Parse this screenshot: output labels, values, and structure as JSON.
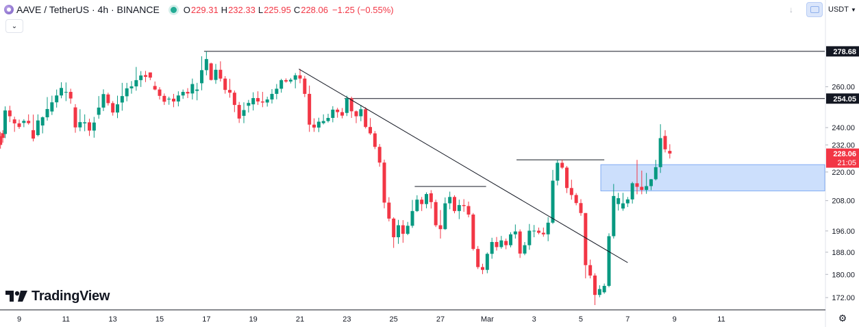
{
  "header": {
    "symbol": "AAVE / TetherUS · 4h · BINANCE",
    "ohlc": [
      {
        "key": "O",
        "value": "229.31"
      },
      {
        "key": "H",
        "value": "232.33"
      },
      {
        "key": "L",
        "value": "225.95"
      },
      {
        "key": "C",
        "value": "228.06"
      }
    ],
    "change": "−1.25 (−0.55%)"
  },
  "toolbar": {
    "currency": "USDT",
    "collapse_icon": "chevron-down-icon",
    "download_icon": "download-arrow-icon",
    "snapshot_icon": "screenshot-icon"
  },
  "branding": {
    "logo_text": "TradingView"
  },
  "colors": {
    "up": "#089981",
    "down": "#f23645",
    "zone": "#bbd4fb",
    "label_dark": "#131722",
    "label_red": "#f23645"
  },
  "chart_data": {
    "type": "candlestick",
    "title": "AAVE / TetherUS · 4h · BINANCE",
    "y_scale": "log",
    "ylim": [
      169.5,
      290.5
    ],
    "y_ticks": [
      "172.00",
      "180.00",
      "188.00",
      "196.00",
      "208.00",
      "220.00",
      "232.00",
      "240.00",
      "260.00"
    ],
    "x_ticks": [
      {
        "label": "9",
        "day": 9
      },
      {
        "label": "11",
        "day": 11
      },
      {
        "label": "13",
        "day": 13
      },
      {
        "label": "15",
        "day": 15
      },
      {
        "label": "17",
        "day": 17
      },
      {
        "label": "19",
        "day": 19
      },
      {
        "label": "21",
        "day": 21
      },
      {
        "label": "23",
        "day": 23
      },
      {
        "label": "25",
        "day": 25
      },
      {
        "label": "27",
        "day": 27
      },
      {
        "label": "Mar",
        "day": 29
      },
      {
        "label": "3",
        "day": 31
      },
      {
        "label": "5",
        "day": 33
      },
      {
        "label": "7",
        "day": 35
      },
      {
        "label": "9",
        "day": 37
      },
      {
        "label": "11",
        "day": 39
      }
    ],
    "x_domain": [
      8.18,
      43.42
    ],
    "price_labels": [
      {
        "text": "278.68",
        "value": 278.68,
        "style": "dark"
      },
      {
        "text": "254.05",
        "value": 254.05,
        "style": "dark"
      },
      {
        "text": "228.06",
        "sub": "21:05",
        "value": 228.06,
        "style": "red"
      }
    ],
    "horizontal_levels": [
      {
        "value": 278.68,
        "from_day": 16.9
      },
      {
        "value": 254.05,
        "from_day": 22.9
      },
      {
        "value": 213.85,
        "from_day": 25.9,
        "to_day": 28.95
      },
      {
        "value": 225.3,
        "from_day": 30.25,
        "to_day": 34.0
      }
    ],
    "trendline": {
      "from": [
        20.95,
        269.2
      ],
      "to": [
        35.0,
        184.2
      ]
    },
    "zone": {
      "from_day": 33.85,
      "top": 223.2,
      "bottom": 212.0
    },
    "candles": [
      [
        8.2,
        236.0,
        238.0,
        230.3,
        232.0
      ],
      [
        8.3,
        237.4,
        238.8,
        233.0,
        235.2
      ],
      [
        8.4,
        237.0,
        250.2,
        235.1,
        248.2
      ],
      [
        8.6,
        248.2,
        250.5,
        242.6,
        245.4
      ],
      [
        8.8,
        243.9,
        245.2,
        238.0,
        242.0
      ],
      [
        9.0,
        242.0,
        243.8,
        239.4,
        240.3
      ],
      [
        9.2,
        242.2,
        244.0,
        240.2,
        243.2
      ],
      [
        9.4,
        243.2,
        246.3,
        241.4,
        242.1
      ],
      [
        9.6,
        238.8,
        246.2,
        233.6,
        234.9
      ],
      [
        9.8,
        236.5,
        246.3,
        235.9,
        243.4
      ],
      [
        10.0,
        241.0,
        245.3,
        237.3,
        244.9
      ],
      [
        10.2,
        244.9,
        254.8,
        243.3,
        248.9
      ],
      [
        10.4,
        247.7,
        255.5,
        246.0,
        252.2
      ],
      [
        10.6,
        252.2,
        258.6,
        249.6,
        255.6
      ],
      [
        10.8,
        255.6,
        262.3,
        254.2,
        259.4
      ],
      [
        11.0,
        257.4,
        262.2,
        252.8,
        257.4
      ],
      [
        11.2,
        257.4,
        259.0,
        251.5,
        254.1
      ],
      [
        11.4,
        249.7,
        251.3,
        237.6,
        240.1
      ],
      [
        11.6,
        240.1,
        248.8,
        238.3,
        242.6
      ],
      [
        11.8,
        242.0,
        246.3,
        238.3,
        242.5
      ],
      [
        12.0,
        242.5,
        244.2,
        236.1,
        238.6
      ],
      [
        12.2,
        238.6,
        245.1,
        235.3,
        242.4
      ],
      [
        12.4,
        246.1,
        255.3,
        244.2,
        249.6
      ],
      [
        12.6,
        249.6,
        258.7,
        247.9,
        256.3
      ],
      [
        12.8,
        256.1,
        257.0,
        250.6,
        251.8
      ],
      [
        13.0,
        251.8,
        252.8,
        245.7,
        247.2
      ],
      [
        13.2,
        247.2,
        255.5,
        244.5,
        251.2
      ],
      [
        13.4,
        252.1,
        262.0,
        248.1,
        255.3
      ],
      [
        13.6,
        255.2,
        262.0,
        252.7,
        259.2
      ],
      [
        13.8,
        259.2,
        262.9,
        256.5,
        260.2
      ],
      [
        14.0,
        260.2,
        270.3,
        258.0,
        263.4
      ],
      [
        14.2,
        263.4,
        268.1,
        259.9,
        265.8
      ],
      [
        14.4,
        266.0,
        268.2,
        262.4,
        265.1
      ],
      [
        14.6,
        267.4,
        267.4,
        263.4,
        264.7
      ],
      [
        14.8,
        260.4,
        262.7,
        258.2,
        258.6
      ],
      [
        15.0,
        258.6,
        259.8,
        253.6,
        255.4
      ],
      [
        15.2,
        255.4,
        256.6,
        250.9,
        252.5
      ],
      [
        15.4,
        253.6,
        255.0,
        251.0,
        254.0
      ],
      [
        15.6,
        254.0,
        256.4,
        249.8,
        252.6
      ],
      [
        15.8,
        252.6,
        257.7,
        250.2,
        255.6
      ],
      [
        16.0,
        255.6,
        258.6,
        253.9,
        257.4
      ],
      [
        16.2,
        257.4,
        259.3,
        254.3,
        256.6
      ],
      [
        16.4,
        256.6,
        264.2,
        253.6,
        261.4
      ],
      [
        16.6,
        257.9,
        262.0,
        253.2,
        258.6
      ],
      [
        16.8,
        261.8,
        276.0,
        258.2,
        268.6
      ],
      [
        17.0,
        268.6,
        278.7,
        265.9,
        274.5
      ],
      [
        17.2,
        272.2,
        272.6,
        263.2,
        263.5
      ],
      [
        17.4,
        263.5,
        271.9,
        261.5,
        268.8
      ],
      [
        17.6,
        268.8,
        273.3,
        262.7,
        264.2
      ],
      [
        17.8,
        264.2,
        265.5,
        256.5,
        258.4
      ],
      [
        18.0,
        258.4,
        264.1,
        254.5,
        257.0
      ],
      [
        18.2,
        257.0,
        258.1,
        247.4,
        250.9
      ],
      [
        18.4,
        250.9,
        252.4,
        242.2,
        244.3
      ],
      [
        18.6,
        245.6,
        252.2,
        242.1,
        248.4
      ],
      [
        18.8,
        250.5,
        253.4,
        247.2,
        251.9
      ],
      [
        19.0,
        251.2,
        257.2,
        248.2,
        254.3
      ],
      [
        19.2,
        254.3,
        257.7,
        250.9,
        252.6
      ],
      [
        19.4,
        252.6,
        257.4,
        249.8,
        252.1
      ],
      [
        19.6,
        252.1,
        255.0,
        250.1,
        253.6
      ],
      [
        19.8,
        253.6,
        258.8,
        251.6,
        256.4
      ],
      [
        20.0,
        256.4,
        261.4,
        253.7,
        259.0
      ],
      [
        20.2,
        259.0,
        264.1,
        257.0,
        263.4
      ],
      [
        20.4,
        263.4,
        264.3,
        262.1,
        262.7
      ],
      [
        20.6,
        262.7,
        264.5,
        261.7,
        263.6
      ],
      [
        20.8,
        263.6,
        267.1,
        259.2,
        265.9
      ],
      [
        21.0,
        265.9,
        269.2,
        261.8,
        264.2
      ],
      [
        21.2,
        264.2,
        265.6,
        254.8,
        256.4
      ],
      [
        21.4,
        256.4,
        260.6,
        238.0,
        241.4
      ],
      [
        21.6,
        241.4,
        244.4,
        238.0,
        240.0
      ],
      [
        21.8,
        240.0,
        244.7,
        237.9,
        242.8
      ],
      [
        22.0,
        242.1,
        246.3,
        241.5,
        243.1
      ],
      [
        22.2,
        243.1,
        246.6,
        242.4,
        244.6
      ],
      [
        22.4,
        244.6,
        250.3,
        242.5,
        248.6
      ],
      [
        22.6,
        248.6,
        249.5,
        244.7,
        247.4
      ],
      [
        22.8,
        247.4,
        249.4,
        244.4,
        245.7
      ],
      [
        23.0,
        247.0,
        255.5,
        245.5,
        254.2
      ],
      [
        23.2,
        254.2,
        255.0,
        244.6,
        247.8
      ],
      [
        23.4,
        247.8,
        248.2,
        242.1,
        245.4
      ],
      [
        23.6,
        245.4,
        250.9,
        243.0,
        248.8
      ],
      [
        23.8,
        248.8,
        249.8,
        239.6,
        240.3
      ],
      [
        24.0,
        240.3,
        244.5,
        236.6,
        237.3
      ],
      [
        24.2,
        237.3,
        238.4,
        230.1,
        231.1
      ],
      [
        24.4,
        231.1,
        232.4,
        222.3,
        224.1
      ],
      [
        24.6,
        224.1,
        225.4,
        204.9,
        207.2
      ],
      [
        24.8,
        207.2,
        209.4,
        199.7,
        200.8
      ],
      [
        25.0,
        200.8,
        201.3,
        189.6,
        193.6
      ],
      [
        25.2,
        193.6,
        200.3,
        191.1,
        198.2
      ],
      [
        25.4,
        198.2,
        200.2,
        191.5,
        194.9
      ],
      [
        25.6,
        194.9,
        199.5,
        194.4,
        198.0
      ],
      [
        25.8,
        198.0,
        208.3,
        197.2,
        203.8
      ],
      [
        26.0,
        203.8,
        210.2,
        203.4,
        208.4
      ],
      [
        26.2,
        208.4,
        209.5,
        203.8,
        206.6
      ],
      [
        26.4,
        206.6,
        211.4,
        204.9,
        210.7
      ],
      [
        26.6,
        211.0,
        212.3,
        204.8,
        207.4
      ],
      [
        26.8,
        207.4,
        208.4,
        197.5,
        198.2
      ],
      [
        27.0,
        198.2,
        204.2,
        193.1,
        196.7
      ],
      [
        27.2,
        196.7,
        209.3,
        196.4,
        206.9
      ],
      [
        27.4,
        206.9,
        211.7,
        204.5,
        209.5
      ],
      [
        27.6,
        209.5,
        210.2,
        202.9,
        203.8
      ],
      [
        27.8,
        203.8,
        208.4,
        200.6,
        206.2
      ],
      [
        28.0,
        206.2,
        208.6,
        203.5,
        205.8
      ],
      [
        28.2,
        205.8,
        207.6,
        201.3,
        202.4
      ],
      [
        28.4,
        202.4,
        203.0,
        188.6,
        189.2
      ],
      [
        28.6,
        189.2,
        190.3,
        181.9,
        182.6
      ],
      [
        28.8,
        182.6,
        183.8,
        180.1,
        181.6
      ],
      [
        29.0,
        181.6,
        187.9,
        180.4,
        187.4
      ],
      [
        29.2,
        187.4,
        193.4,
        185.6,
        191.8
      ],
      [
        29.4,
        191.8,
        193.7,
        188.6,
        189.9
      ],
      [
        29.6,
        189.9,
        194.1,
        189.3,
        192.4
      ],
      [
        29.8,
        192.2,
        193.1,
        189.1,
        190.6
      ],
      [
        30.0,
        190.6,
        195.5,
        189.8,
        194.7
      ],
      [
        30.2,
        194.7,
        198.5,
        193.1,
        195.8
      ],
      [
        30.4,
        195.8,
        196.6,
        185.9,
        187.5
      ],
      [
        30.6,
        187.5,
        191.8,
        186.9,
        190.6
      ],
      [
        30.8,
        190.6,
        198.7,
        188.9,
        196.1
      ],
      [
        31.0,
        196.1,
        198.3,
        193.6,
        196.1
      ],
      [
        31.2,
        196.1,
        197.3,
        194.7,
        195.3
      ],
      [
        31.4,
        195.3,
        197.3,
        193.8,
        194.7
      ],
      [
        31.6,
        194.7,
        201.4,
        192.1,
        199.2
      ],
      [
        31.8,
        199.2,
        220.9,
        198.7,
        216.3
      ],
      [
        32.0,
        216.3,
        225.3,
        214.3,
        224.0
      ],
      [
        32.2,
        224.0,
        225.3,
        221.3,
        221.9
      ],
      [
        32.4,
        221.9,
        222.6,
        211.1,
        213.2
      ],
      [
        32.6,
        213.2,
        216.7,
        208.4,
        210.3
      ],
      [
        32.8,
        210.3,
        211.1,
        206.1,
        207.0
      ],
      [
        33.0,
        207.0,
        208.6,
        201.9,
        203.0
      ],
      [
        33.2,
        203.0,
        203.0,
        178.6,
        183.3
      ],
      [
        33.4,
        183.3,
        185.3,
        178.6,
        179.6
      ],
      [
        33.6,
        179.6,
        180.4,
        169.5,
        172.9
      ],
      [
        33.8,
        172.9,
        176.2,
        172.1,
        174.9
      ],
      [
        34.0,
        173.8,
        176.8,
        173.3,
        176.0
      ],
      [
        34.2,
        176.0,
        195.1,
        175.5,
        194.0
      ],
      [
        34.4,
        194.0,
        214.9,
        193.1,
        209.9
      ],
      [
        34.6,
        206.6,
        211.2,
        204.0,
        209.0
      ],
      [
        34.8,
        204.8,
        211.2,
        203.9,
        206.9
      ],
      [
        35.0,
        206.9,
        209.5,
        205.4,
        208.5
      ],
      [
        35.2,
        208.5,
        215.8,
        206.8,
        215.2
      ],
      [
        35.4,
        215.2,
        225.3,
        210.6,
        213.7
      ],
      [
        35.6,
        213.7,
        220.6,
        210.6,
        212.4
      ],
      [
        35.8,
        212.4,
        219.6,
        210.8,
        214.0
      ],
      [
        36.0,
        214.0,
        217.0,
        212.3,
        216.9
      ],
      [
        36.2,
        216.9,
        225.3,
        216.4,
        222.1
      ],
      [
        36.4,
        222.1,
        241.6,
        219.6,
        235.1
      ],
      [
        36.6,
        236.1,
        238.8,
        228.6,
        230.0
      ],
      [
        36.8,
        229.3,
        232.3,
        225.9,
        228.1
      ]
    ]
  }
}
